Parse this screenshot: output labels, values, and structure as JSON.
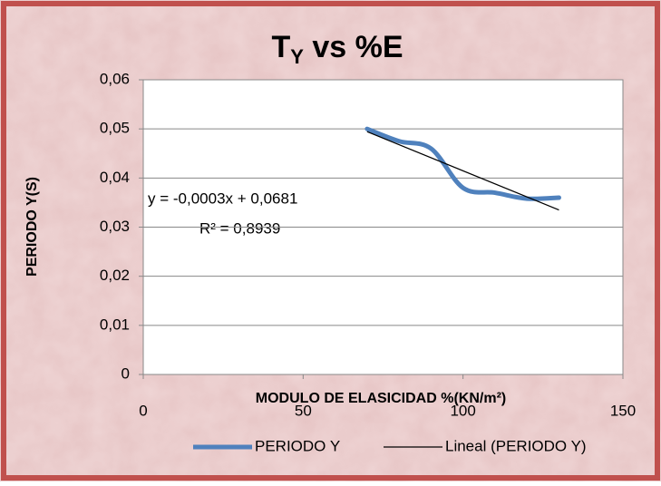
{
  "chart_data": {
    "type": "line",
    "title": {
      "main": "T",
      "sub": "Y",
      "rest": " vs %E"
    },
    "x_label": "MODULO DE ELASICIDAD %(KN/m²)",
    "y_label": "PERIODO Y(S)",
    "x": [
      70,
      80,
      90,
      100,
      110,
      120,
      130
    ],
    "series": [
      {
        "name": "PERIODO Y",
        "color": "#4f81bd",
        "values": [
          0.05,
          0.0475,
          0.046,
          0.038,
          0.037,
          0.0358,
          0.036
        ],
        "smooth": true
      }
    ],
    "trendline": {
      "name": "Lineal (PERIODO Y)",
      "color": "#000000",
      "type": "linear",
      "equation": "y = -0,0003x + 0,0681",
      "r2": "R² = 0,8939"
    },
    "xlim": [
      0,
      150
    ],
    "xticks": [
      0,
      50,
      100,
      150
    ],
    "ylim": [
      0,
      0.06
    ],
    "yticks": [
      0,
      {
        "value": 0.01,
        "label": "0,01"
      },
      {
        "value": 0.02,
        "label": "0,02"
      },
      {
        "value": 0.03,
        "label": "0,03"
      },
      {
        "value": 0.04,
        "label": "0,04"
      },
      {
        "value": 0.05,
        "label": "0,05"
      },
      {
        "value": 0.06,
        "label": "0,06"
      }
    ],
    "grid": true,
    "legend": "bottom"
  }
}
